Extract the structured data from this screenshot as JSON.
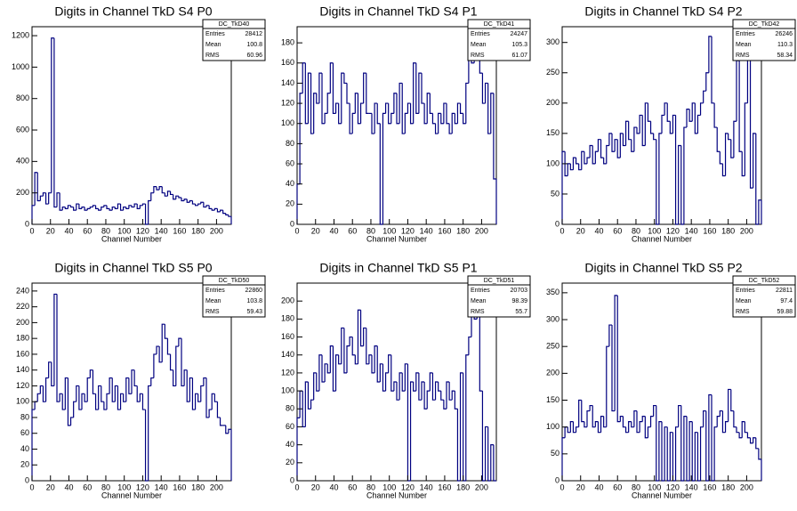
{
  "chart_data": [
    {
      "type": "histogram",
      "title": "Digits in Channel TkD S4 P0",
      "x_label": "Channel Number",
      "color": "#000080",
      "stats": {
        "name": "DC_TkD40",
        "rows": [
          {
            "label": "Entries",
            "value": 28412
          },
          {
            "label": "Mean",
            "value": 100.8
          },
          {
            "label": "RMS",
            "value": 60.96
          }
        ]
      },
      "bins": [
        0,
        3,
        6,
        9,
        12,
        15,
        18,
        21,
        24,
        27,
        30,
        33,
        36,
        39,
        42,
        45,
        48,
        51,
        54,
        57,
        60,
        63,
        66,
        69,
        72,
        75,
        78,
        81,
        84,
        87,
        90,
        93,
        96,
        99,
        102,
        105,
        108,
        111,
        114,
        117,
        120,
        123,
        126,
        129,
        132,
        135,
        138,
        141,
        144,
        147,
        150,
        153,
        156,
        159,
        162,
        165,
        168,
        171,
        174,
        177,
        180,
        183,
        186,
        189,
        192,
        195,
        198,
        201,
        204,
        207,
        210,
        213,
        216
      ],
      "values": [
        120,
        330,
        150,
        180,
        200,
        130,
        200,
        1185,
        110,
        200,
        90,
        110,
        100,
        120,
        110,
        90,
        130,
        100,
        110,
        90,
        100,
        110,
        120,
        100,
        90,
        110,
        120,
        100,
        90,
        110,
        100,
        130,
        90,
        110,
        100,
        120,
        110,
        130,
        100,
        120,
        130,
        0,
        150,
        200,
        240,
        220,
        240,
        200,
        180,
        210,
        190,
        160,
        180,
        170,
        150,
        160,
        140,
        150,
        130,
        120,
        130,
        140,
        110,
        120,
        100,
        90,
        100,
        80,
        90,
        70,
        60,
        50
      ],
      "xlim": [
        0,
        216
      ],
      "xticks": [
        0,
        20,
        40,
        60,
        80,
        100,
        120,
        140,
        160,
        180,
        200
      ],
      "ylim": [
        0,
        1257
      ],
      "yticks": [
        0,
        200,
        400,
        600,
        800,
        1000,
        1200
      ]
    },
    {
      "type": "histogram",
      "title": "Digits in Channel TkD S4 P1",
      "x_label": "Channel Number",
      "color": "#000080",
      "stats": {
        "name": "DC_TkD41",
        "rows": [
          {
            "label": "Entries",
            "value": 24247
          },
          {
            "label": "Mean",
            "value": 105.3
          },
          {
            "label": "RMS",
            "value": 61.07
          }
        ]
      },
      "bins": [
        0,
        3,
        6,
        9,
        12,
        15,
        18,
        21,
        24,
        27,
        30,
        33,
        36,
        39,
        42,
        45,
        48,
        51,
        54,
        57,
        60,
        63,
        66,
        69,
        72,
        75,
        78,
        81,
        84,
        87,
        90,
        93,
        96,
        99,
        102,
        105,
        108,
        111,
        114,
        117,
        120,
        123,
        126,
        129,
        132,
        135,
        138,
        141,
        144,
        147,
        150,
        153,
        156,
        159,
        162,
        165,
        168,
        171,
        174,
        177,
        180,
        183,
        186,
        189,
        192,
        195,
        198,
        201,
        204,
        207,
        210,
        213,
        216
      ],
      "values": [
        40,
        130,
        160,
        100,
        150,
        90,
        130,
        120,
        150,
        100,
        110,
        130,
        160,
        110,
        120,
        100,
        150,
        140,
        120,
        90,
        110,
        130,
        100,
        120,
        150,
        110,
        110,
        90,
        120,
        100,
        0,
        110,
        120,
        100,
        110,
        130,
        100,
        140,
        90,
        110,
        120,
        100,
        160,
        110,
        150,
        120,
        100,
        130,
        110,
        100,
        90,
        110,
        100,
        120,
        100,
        90,
        110,
        100,
        120,
        110,
        100,
        140,
        190,
        160,
        180,
        196,
        150,
        120,
        140,
        90,
        130,
        45
      ],
      "xlim": [
        0,
        216
      ],
      "xticks": [
        0,
        20,
        40,
        60,
        80,
        100,
        120,
        140,
        160,
        180,
        200
      ],
      "ylim": [
        0,
        196
      ],
      "yticks": [
        0,
        20,
        40,
        60,
        80,
        100,
        120,
        140,
        160,
        180
      ]
    },
    {
      "type": "histogram",
      "title": "Digits in Channel TkD S4 P2",
      "x_label": "Channel Number",
      "color": "#000080",
      "stats": {
        "name": "DC_TkD42",
        "rows": [
          {
            "label": "Entries",
            "value": 26246
          },
          {
            "label": "Mean",
            "value": 110.3
          },
          {
            "label": "RMS",
            "value": 58.34
          }
        ]
      },
      "bins": [
        0,
        3,
        6,
        9,
        12,
        15,
        18,
        21,
        24,
        27,
        30,
        33,
        36,
        39,
        42,
        45,
        48,
        51,
        54,
        57,
        60,
        63,
        66,
        69,
        72,
        75,
        78,
        81,
        84,
        87,
        90,
        93,
        96,
        99,
        102,
        105,
        108,
        111,
        114,
        117,
        120,
        123,
        126,
        129,
        132,
        135,
        138,
        141,
        144,
        147,
        150,
        153,
        156,
        159,
        162,
        165,
        168,
        171,
        174,
        177,
        180,
        183,
        186,
        189,
        192,
        195,
        198,
        201,
        204,
        207,
        210,
        213,
        216
      ],
      "values": [
        120,
        80,
        100,
        90,
        110,
        100,
        90,
        120,
        100,
        110,
        130,
        100,
        120,
        140,
        110,
        100,
        130,
        150,
        120,
        140,
        110,
        150,
        130,
        170,
        140,
        120,
        160,
        150,
        180,
        130,
        200,
        170,
        150,
        140,
        0,
        150,
        180,
        200,
        170,
        150,
        180,
        0,
        130,
        0,
        160,
        190,
        170,
        200,
        150,
        180,
        200,
        220,
        250,
        310,
        200,
        160,
        120,
        100,
        80,
        150,
        140,
        110,
        170,
        270,
        120,
        80,
        200,
        280,
        60,
        150,
        0,
        40
      ],
      "xlim": [
        0,
        216
      ],
      "xticks": [
        0,
        20,
        40,
        60,
        80,
        100,
        120,
        140,
        160,
        180,
        200
      ],
      "ylim": [
        0,
        326
      ],
      "yticks": [
        0,
        50,
        100,
        150,
        200,
        250,
        300
      ]
    },
    {
      "type": "histogram",
      "title": "Digits in Channel TkD S5 P0",
      "x_label": "Channel Number",
      "color": "#000080",
      "stats": {
        "name": "DC_TkD50",
        "rows": [
          {
            "label": "Entries",
            "value": 22860
          },
          {
            "label": "Mean",
            "value": 103.8
          },
          {
            "label": "RMS",
            "value": 59.43
          }
        ]
      },
      "bins": [
        0,
        3,
        6,
        9,
        12,
        15,
        18,
        21,
        24,
        27,
        30,
        33,
        36,
        39,
        42,
        45,
        48,
        51,
        54,
        57,
        60,
        63,
        66,
        69,
        72,
        75,
        78,
        81,
        84,
        87,
        90,
        93,
        96,
        99,
        102,
        105,
        108,
        111,
        114,
        117,
        120,
        123,
        126,
        129,
        132,
        135,
        138,
        141,
        144,
        147,
        150,
        153,
        156,
        159,
        162,
        165,
        168,
        171,
        174,
        177,
        180,
        183,
        186,
        189,
        192,
        195,
        198,
        201,
        204,
        207,
        210,
        213,
        216
      ],
      "values": [
        90,
        100,
        110,
        120,
        100,
        130,
        150,
        120,
        236,
        100,
        110,
        90,
        130,
        70,
        80,
        100,
        120,
        90,
        110,
        100,
        130,
        140,
        110,
        90,
        120,
        100,
        90,
        110,
        130,
        100,
        120,
        90,
        110,
        100,
        130,
        110,
        140,
        120,
        100,
        110,
        90,
        0,
        120,
        130,
        160,
        170,
        150,
        198,
        180,
        160,
        140,
        120,
        170,
        180,
        120,
        140,
        100,
        130,
        90,
        110,
        100,
        120,
        130,
        80,
        90,
        110,
        100,
        80,
        70,
        70,
        60,
        65
      ],
      "xlim": [
        0,
        216
      ],
      "xticks": [
        0,
        20,
        40,
        60,
        80,
        100,
        120,
        140,
        160,
        180,
        200
      ],
      "ylim": [
        0,
        250
      ],
      "yticks": [
        0,
        20,
        40,
        60,
        80,
        100,
        120,
        140,
        160,
        180,
        200,
        220,
        240
      ]
    },
    {
      "type": "histogram",
      "title": "Digits in Channel TkD S5 P1",
      "x_label": "Channel Number",
      "color": "#000080",
      "stats": {
        "name": "DC_TkD51",
        "rows": [
          {
            "label": "Entries",
            "value": 20703
          },
          {
            "label": "Mean",
            "value": 98.39
          },
          {
            "label": "RMS",
            "value": 55.7
          }
        ]
      },
      "bins": [
        0,
        3,
        6,
        9,
        12,
        15,
        18,
        21,
        24,
        27,
        30,
        33,
        36,
        39,
        42,
        45,
        48,
        51,
        54,
        57,
        60,
        63,
        66,
        69,
        72,
        75,
        78,
        81,
        84,
        87,
        90,
        93,
        96,
        99,
        102,
        105,
        108,
        111,
        114,
        117,
        120,
        123,
        126,
        129,
        132,
        135,
        138,
        141,
        144,
        147,
        150,
        153,
        156,
        159,
        162,
        165,
        168,
        171,
        174,
        177,
        180,
        183,
        186,
        189,
        192,
        195,
        198,
        201,
        204,
        207,
        210,
        213,
        216
      ],
      "values": [
        70,
        100,
        60,
        110,
        80,
        90,
        120,
        100,
        140,
        110,
        130,
        120,
        150,
        100,
        140,
        130,
        170,
        120,
        150,
        160,
        140,
        130,
        190,
        150,
        170,
        130,
        140,
        120,
        150,
        110,
        130,
        100,
        120,
        140,
        100,
        110,
        90,
        120,
        100,
        130,
        0,
        110,
        100,
        120,
        90,
        110,
        80,
        100,
        120,
        90,
        110,
        100,
        90,
        80,
        110,
        90,
        100,
        80,
        0,
        120,
        0,
        140,
        160,
        210,
        180,
        220,
        100,
        0,
        60,
        0,
        40,
        0
      ],
      "xlim": [
        0,
        216
      ],
      "xticks": [
        0,
        20,
        40,
        60,
        80,
        100,
        120,
        140,
        160,
        180,
        200
      ],
      "ylim": [
        0,
        220
      ],
      "yticks": [
        0,
        20,
        40,
        60,
        80,
        100,
        120,
        140,
        160,
        180,
        200
      ]
    },
    {
      "type": "histogram",
      "title": "Digits in Channel TkD S5 P2",
      "x_label": "Channel Number",
      "color": "#000080",
      "stats": {
        "name": "DC_TkD52",
        "rows": [
          {
            "label": "Entries",
            "value": 22811
          },
          {
            "label": "Mean",
            "value": 97.4
          },
          {
            "label": "RMS",
            "value": 59.88
          }
        ]
      },
      "bins": [
        0,
        3,
        6,
        9,
        12,
        15,
        18,
        21,
        24,
        27,
        30,
        33,
        36,
        39,
        42,
        45,
        48,
        51,
        54,
        57,
        60,
        63,
        66,
        69,
        72,
        75,
        78,
        81,
        84,
        87,
        90,
        93,
        96,
        99,
        102,
        105,
        108,
        111,
        114,
        117,
        120,
        123,
        126,
        129,
        132,
        135,
        138,
        141,
        144,
        147,
        150,
        153,
        156,
        159,
        162,
        165,
        168,
        171,
        174,
        177,
        180,
        183,
        186,
        189,
        192,
        195,
        198,
        201,
        204,
        207,
        210,
        213,
        216
      ],
      "values": [
        80,
        100,
        90,
        110,
        90,
        100,
        150,
        110,
        100,
        130,
        140,
        100,
        110,
        90,
        120,
        100,
        250,
        290,
        130,
        345,
        110,
        120,
        100,
        90,
        110,
        100,
        130,
        90,
        110,
        120,
        80,
        100,
        120,
        140,
        0,
        110,
        0,
        100,
        0,
        90,
        0,
        100,
        140,
        0,
        120,
        0,
        110,
        0,
        90,
        0,
        100,
        130,
        0,
        160,
        0,
        100,
        120,
        130,
        90,
        110,
        170,
        130,
        100,
        90,
        80,
        110,
        90,
        80,
        70,
        80,
        60,
        40
      ],
      "xlim": [
        0,
        216
      ],
      "xticks": [
        0,
        20,
        40,
        60,
        80,
        100,
        120,
        140,
        160,
        180,
        200
      ],
      "ylim": [
        0,
        368
      ],
      "yticks": [
        0,
        50,
        100,
        150,
        200,
        250,
        300,
        350
      ]
    }
  ]
}
